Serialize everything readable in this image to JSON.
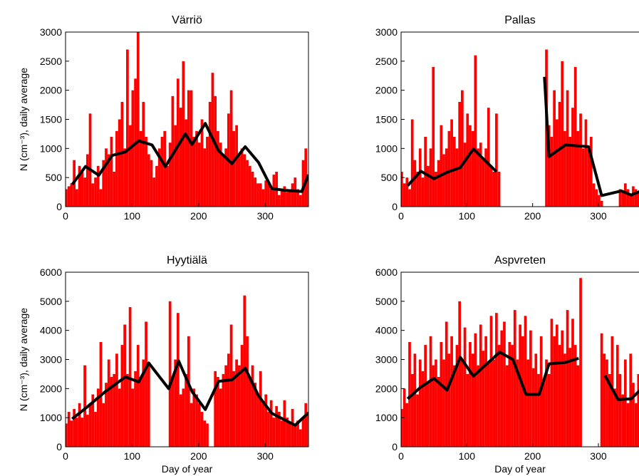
{
  "chart_data": [
    {
      "type": "bar",
      "title": "Värriö",
      "ylabel": "N (cm⁻³), daily average",
      "color": "#ff0000",
      "x": [
        1,
        5,
        9,
        13,
        17,
        21,
        25,
        29,
        33,
        37,
        41,
        45,
        49,
        53,
        57,
        61,
        65,
        69,
        73,
        77,
        81,
        85,
        89,
        93,
        97,
        101,
        105,
        109,
        113,
        117,
        121,
        125,
        129,
        133,
        137,
        141,
        145,
        149,
        153,
        157,
        161,
        165,
        169,
        173,
        177,
        181,
        185,
        189,
        193,
        197,
        201,
        205,
        209,
        213,
        217,
        221,
        225,
        229,
        233,
        237,
        241,
        245,
        249,
        253,
        257,
        261,
        265,
        269,
        273,
        277,
        281,
        285,
        289,
        293,
        297,
        301,
        305,
        309,
        313,
        317,
        321,
        325,
        329,
        333,
        337,
        341,
        345,
        349,
        353,
        357,
        361,
        365
      ],
      "values": [
        300,
        350,
        400,
        800,
        300,
        700,
        600,
        500,
        900,
        1600,
        400,
        500,
        700,
        300,
        800,
        1000,
        900,
        1200,
        600,
        1300,
        1500,
        1800,
        1000,
        2700,
        1400,
        2000,
        2200,
        3000,
        1300,
        1800,
        1200,
        900,
        800,
        500,
        700,
        1000,
        1200,
        1300,
        700,
        1100,
        1900,
        1400,
        2200,
        1700,
        2500,
        1500,
        2000,
        2000,
        1200,
        1300,
        1100,
        1500,
        1000,
        1200,
        1800,
        2300,
        1900,
        1300,
        1100,
        900,
        1000,
        1600,
        2000,
        1300,
        1400,
        900,
        1000,
        900,
        800,
        700,
        600,
        500,
        400,
        400,
        300,
        450,
        400,
        300,
        550,
        600,
        200,
        300,
        350,
        250,
        300,
        400,
        500,
        300,
        200,
        800,
        1000,
        500
      ],
      "line": {
        "color": "#000000",
        "x": [
          10,
          30,
          50,
          70,
          90,
          110,
          130,
          150,
          180,
          190,
          210,
          230,
          250,
          270,
          290,
          310,
          330,
          355,
          365
        ],
        "values": [
          380,
          690,
          540,
          880,
          940,
          1130,
          1060,
          690,
          1250,
          1070,
          1430,
          960,
          740,
          1030,
          760,
          310,
          280,
          260,
          550
        ]
      },
      "xlim": [
        0,
        365
      ],
      "ylim": [
        0,
        3000
      ],
      "xticks": [
        0,
        100,
        200,
        300
      ],
      "yticks": [
        0,
        500,
        1000,
        1500,
        2000,
        2500,
        3000
      ]
    },
    {
      "type": "bar",
      "title": "Pallas",
      "color": "#ff0000",
      "x": [
        1,
        5,
        9,
        13,
        17,
        21,
        25,
        29,
        33,
        37,
        41,
        45,
        49,
        53,
        57,
        61,
        65,
        69,
        73,
        77,
        81,
        85,
        89,
        93,
        97,
        101,
        105,
        109,
        113,
        117,
        121,
        125,
        129,
        133,
        137,
        141,
        145,
        149,
        153,
        157,
        161,
        165,
        169,
        173,
        177,
        181,
        185,
        189,
        193,
        197,
        201,
        205,
        209,
        213,
        217,
        221,
        225,
        229,
        233,
        237,
        241,
        245,
        249,
        253,
        257,
        261,
        265,
        269,
        273,
        277,
        281,
        285,
        289,
        293,
        297,
        301,
        305,
        309,
        313,
        317,
        321,
        325,
        329,
        333,
        337,
        341,
        345,
        349,
        353,
        357,
        361,
        365
      ],
      "values": [
        600,
        400,
        500,
        300,
        1500,
        800,
        600,
        1000,
        500,
        1200,
        700,
        1000,
        2400,
        600,
        800,
        1400,
        900,
        1000,
        1300,
        1500,
        1200,
        1000,
        1800,
        2000,
        1100,
        1600,
        1400,
        1300,
        2600,
        1000,
        1100,
        800,
        1000,
        1700,
        700,
        600,
        1600,
        600,
        null,
        null,
        null,
        null,
        null,
        null,
        null,
        null,
        null,
        null,
        null,
        null,
        null,
        null,
        null,
        null,
        null,
        2700,
        1400,
        1200,
        2000,
        1500,
        1800,
        2500,
        1300,
        2000,
        1200,
        1700,
        2400,
        1300,
        1600,
        1000,
        1500,
        1000,
        1200,
        400,
        300,
        200,
        100,
        null,
        null,
        null,
        null,
        null,
        null,
        300,
        250,
        400,
        300,
        200,
        350,
        300,
        250,
        300
      ],
      "line": {
        "color": "#000000",
        "x": [
          10,
          30,
          50,
          70,
          90,
          110,
          145,
          180,
          218,
          225,
          250,
          285,
          305,
          335,
          350,
          365
        ],
        "values": [
          360,
          610,
          480,
          590,
          670,
          990,
          600,
          null,
          2230,
          860,
          1060,
          1030,
          190,
          270,
          200,
          270
        ]
      },
      "xlim": [
        0,
        365
      ],
      "ylim": [
        0,
        3000
      ],
      "xticks": [
        0,
        100,
        200,
        300
      ],
      "yticks": [
        0,
        500,
        1000,
        1500,
        2000,
        2500,
        3000
      ]
    },
    {
      "type": "bar",
      "title": "Hyytiälä",
      "ylabel": "N (cm⁻³), daily average",
      "xlabel": "Day of year",
      "color": "#ff0000",
      "x": [
        1,
        5,
        9,
        13,
        17,
        21,
        25,
        29,
        33,
        37,
        41,
        45,
        49,
        53,
        57,
        61,
        65,
        69,
        73,
        77,
        81,
        85,
        89,
        93,
        97,
        101,
        105,
        109,
        113,
        117,
        121,
        125,
        129,
        133,
        137,
        141,
        145,
        149,
        153,
        157,
        161,
        165,
        169,
        173,
        177,
        181,
        185,
        189,
        193,
        197,
        201,
        205,
        209,
        213,
        217,
        221,
        225,
        229,
        233,
        237,
        241,
        245,
        249,
        253,
        257,
        261,
        265,
        269,
        273,
        277,
        281,
        285,
        289,
        293,
        297,
        301,
        305,
        309,
        313,
        317,
        321,
        325,
        329,
        333,
        337,
        341,
        345,
        349,
        353,
        357,
        361,
        365
      ],
      "values": [
        800,
        1200,
        900,
        1300,
        1000,
        1500,
        1000,
        2800,
        1100,
        1500,
        1800,
        1200,
        2000,
        3600,
        1500,
        2200,
        3000,
        2400,
        2500,
        3200,
        2000,
        3500,
        4200,
        2500,
        4800,
        2000,
        2600,
        3500,
        2400,
        3000,
        4300,
        2800,
        null,
        null,
        null,
        null,
        null,
        null,
        null,
        5000,
        2400,
        3000,
        4600,
        1800,
        2000,
        2500,
        3800,
        1500,
        2000,
        1800,
        1500,
        1200,
        900,
        800,
        null,
        null,
        2600,
        2400,
        2000,
        2500,
        2800,
        3200,
        4200,
        2600,
        3000,
        2800,
        3500,
        5200,
        3800,
        2400,
        2800,
        2200,
        1800,
        2600,
        1500,
        1800,
        1200,
        1600,
        1000,
        1400,
        1200,
        900,
        1600,
        1000,
        800,
        1300,
        700,
        900,
        600,
        1000,
        1500,
        1200
      ],
      "line": {
        "color": "#000000",
        "x": [
          10,
          30,
          60,
          90,
          110,
          125,
          155,
          170,
          190,
          210,
          230,
          250,
          270,
          290,
          310,
          345,
          365
        ],
        "values": [
          960,
          1320,
          1900,
          2400,
          2230,
          2880,
          2000,
          2950,
          1900,
          1280,
          2250,
          2300,
          2700,
          1750,
          1150,
          740,
          1170
        ]
      },
      "xlim": [
        0,
        365
      ],
      "ylim": [
        0,
        6000
      ],
      "xticks": [
        0,
        100,
        200,
        300
      ],
      "yticks": [
        0,
        1000,
        2000,
        3000,
        4000,
        5000,
        6000
      ]
    },
    {
      "type": "bar",
      "title": "Aspvreten",
      "xlabel": "Day of year",
      "color": "#ff0000",
      "x": [
        1,
        5,
        9,
        13,
        17,
        21,
        25,
        29,
        33,
        37,
        41,
        45,
        49,
        53,
        57,
        61,
        65,
        69,
        73,
        77,
        81,
        85,
        89,
        93,
        97,
        101,
        105,
        109,
        113,
        117,
        121,
        125,
        129,
        133,
        137,
        141,
        145,
        149,
        153,
        157,
        161,
        165,
        169,
        173,
        177,
        181,
        185,
        189,
        193,
        197,
        201,
        205,
        209,
        213,
        217,
        221,
        225,
        229,
        233,
        237,
        241,
        245,
        249,
        253,
        257,
        261,
        265,
        269,
        273,
        277,
        281,
        285,
        289,
        293,
        297,
        301,
        305,
        309,
        313,
        317,
        321,
        325,
        329,
        333,
        337,
        341,
        345,
        349,
        353,
        357,
        361,
        365
      ],
      "values": [
        1300,
        2000,
        1500,
        3600,
        2500,
        3200,
        1800,
        3000,
        2600,
        3500,
        2200,
        3800,
        2800,
        3000,
        2400,
        3600,
        3000,
        4300,
        3200,
        3800,
        2800,
        3500,
        5000,
        3000,
        4100,
        2500,
        3600,
        3200,
        3900,
        2800,
        4200,
        3300,
        3800,
        2900,
        4500,
        3000,
        4600,
        3500,
        4000,
        4300,
        2800,
        3600,
        3500,
        4700,
        3000,
        4200,
        3800,
        4500,
        3000,
        4000,
        2700,
        3200,
        2500,
        3800,
        2300,
        3000,
        2500,
        4400,
        3800,
        4200,
        3500,
        4000,
        3200,
        4700,
        3400,
        4400,
        3500,
        2800,
        5800,
        null,
        null,
        null,
        null,
        null,
        null,
        null,
        3900,
        3200,
        3000,
        2500,
        3800,
        2000,
        3500,
        2500,
        1800,
        3000,
        1500,
        3200,
        2200,
        1500,
        2500,
        2000
      ],
      "line": {
        "color": "#000000",
        "x": [
          10,
          30,
          50,
          70,
          90,
          110,
          150,
          170,
          190,
          210,
          225,
          250,
          270,
          290,
          310,
          330,
          350,
          365
        ],
        "values": [
          1650,
          2050,
          2350,
          1950,
          3080,
          2430,
          3250,
          3000,
          1800,
          1800,
          2850,
          2900,
          3040,
          null,
          2450,
          1620,
          1650,
          1980
        ]
      },
      "xlim": [
        0,
        365
      ],
      "ylim": [
        0,
        6000
      ],
      "xticks": [
        0,
        100,
        200,
        300
      ],
      "yticks": [
        0,
        1000,
        2000,
        3000,
        4000,
        5000,
        6000
      ]
    }
  ]
}
